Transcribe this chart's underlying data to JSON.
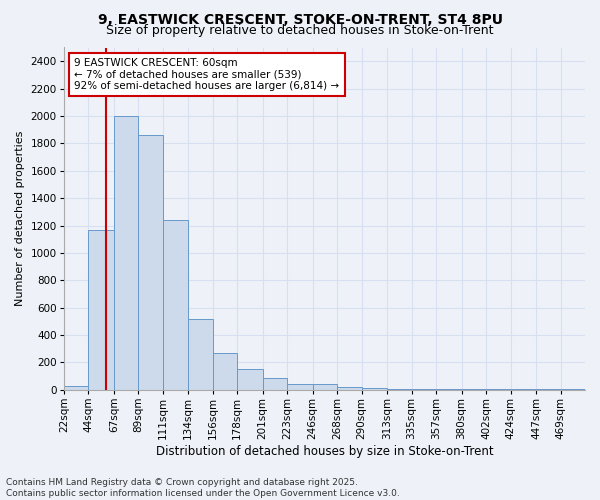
{
  "title1": "9, EASTWICK CRESCENT, STOKE-ON-TRENT, ST4 8PU",
  "title2": "Size of property relative to detached houses in Stoke-on-Trent",
  "xlabel": "Distribution of detached houses by size in Stoke-on-Trent",
  "ylabel": "Number of detached properties",
  "bar_color": "#ccdaeb",
  "bar_edge_color": "#6699cc",
  "annotation_box_color": "#ffffff",
  "annotation_border_color": "#cc0000",
  "annotation_text": "9 EASTWICK CRESCENT: 60sqm\n← 7% of detached houses are smaller (539)\n92% of semi-detached houses are larger (6,814) →",
  "vline_x_index": 1,
  "vline_color": "#cc0000",
  "categories": [
    "22sqm",
    "44sqm",
    "67sqm",
    "89sqm",
    "111sqm",
    "134sqm",
    "156sqm",
    "178sqm",
    "201sqm",
    "223sqm",
    "246sqm",
    "268sqm",
    "290sqm",
    "313sqm",
    "335sqm",
    "357sqm",
    "380sqm",
    "402sqm",
    "424sqm",
    "447sqm",
    "469sqm"
  ],
  "bin_edges": [
    22,
    44,
    67,
    89,
    111,
    134,
    156,
    178,
    201,
    223,
    246,
    268,
    290,
    313,
    335,
    357,
    380,
    402,
    424,
    447,
    469,
    491
  ],
  "values": [
    25,
    1170,
    2000,
    1860,
    1240,
    520,
    270,
    150,
    90,
    45,
    45,
    20,
    15,
    10,
    5,
    5,
    5,
    5,
    5,
    5,
    5
  ],
  "ylim": [
    0,
    2500
  ],
  "yticks": [
    0,
    200,
    400,
    600,
    800,
    1000,
    1200,
    1400,
    1600,
    1800,
    2000,
    2200,
    2400
  ],
  "grid_color": "#d8dff0",
  "background_color": "#eef2f8",
  "footer_text": "Contains HM Land Registry data © Crown copyright and database right 2025.\nContains public sector information licensed under the Open Government Licence v3.0.",
  "title1_fontsize": 10,
  "title2_fontsize": 9,
  "xlabel_fontsize": 8.5,
  "ylabel_fontsize": 8,
  "tick_fontsize": 7.5,
  "annotation_fontsize": 7.5,
  "footer_fontsize": 6.5
}
